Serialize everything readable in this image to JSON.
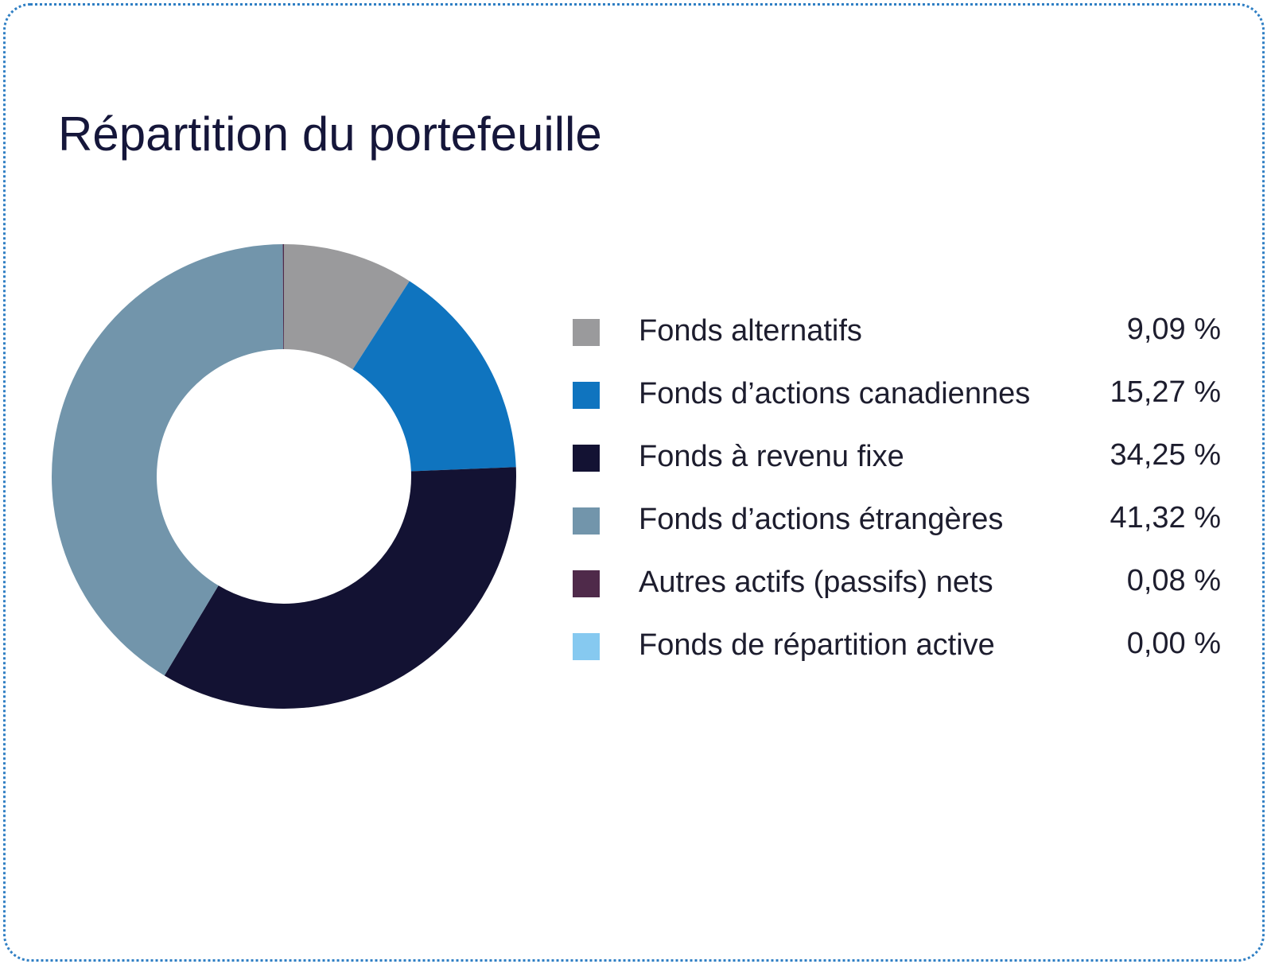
{
  "chart_data": {
    "type": "pie",
    "title": "Répartition du portefeuille",
    "legend_position": "right",
    "categories": [
      "Fonds alternatifs",
      "Fonds d’actions canadiennes",
      "Fonds à revenu fixe",
      "Fonds d’actions étrangères",
      "Autres actifs (passifs) nets",
      "Fonds de répartition active"
    ],
    "values": [
      9.09,
      15.27,
      34.25,
      41.32,
      0.08,
      0.0
    ],
    "value_labels": [
      "9,09 %",
      "15,27 %",
      "34,25 %",
      "41,32 %",
      "0,08 %",
      "0,00 %"
    ],
    "colors": [
      "#9a9a9c",
      "#0f74bf",
      "#131233",
      "#7295ab",
      "#4f2a4a",
      "#86c9f0"
    ]
  }
}
